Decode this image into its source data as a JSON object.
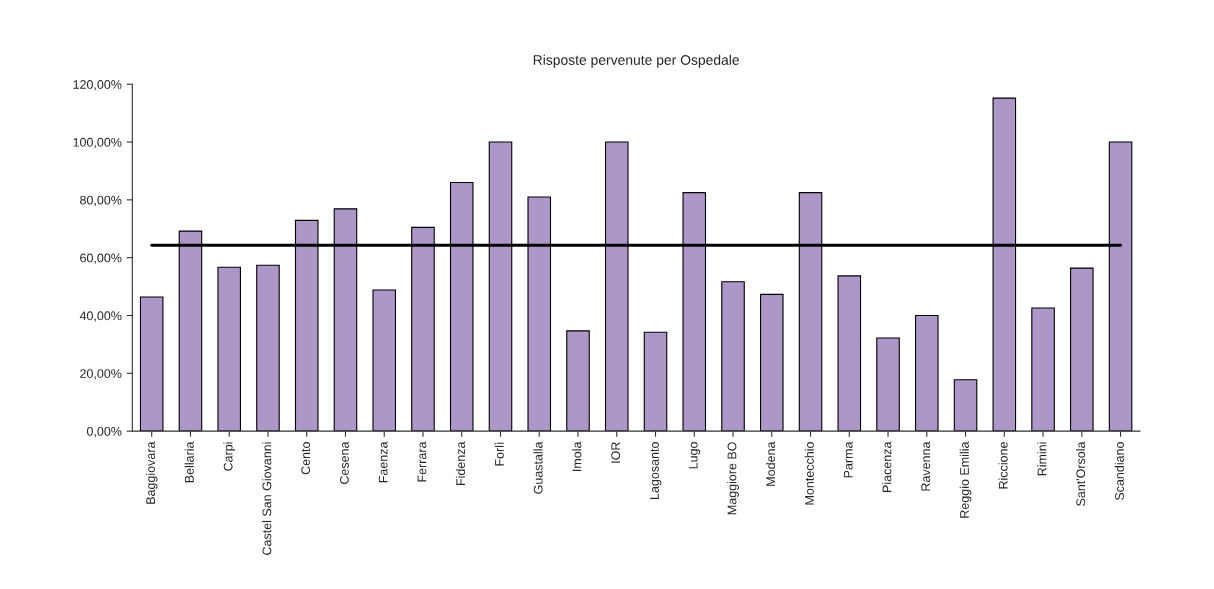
{
  "chart_data": {
    "type": "bar",
    "title": "Risposte pervenute per Ospedale",
    "categories": [
      "Baggiovara",
      "Bellaria",
      "Carpi",
      "Castel San Giovanni",
      "Cento",
      "Cesena",
      "Faenza",
      "Ferrara",
      "Fidenza",
      "Forlì",
      "Guastalla",
      "Imola",
      "IOR",
      "Lagosanto",
      "Lugo",
      "Maggiore BO",
      "Modena",
      "Montecchio",
      "Parma",
      "Piacenza",
      "Ravenna",
      "Reggio Emilia",
      "Riccione",
      "Rimini",
      "Sant'Orsola",
      "Scandiano"
    ],
    "values": [
      46.4,
      69.2,
      56.7,
      57.4,
      72.9,
      76.9,
      48.8,
      70.5,
      86.0,
      100,
      81.0,
      34.7,
      100,
      34.2,
      82.5,
      51.7,
      47.3,
      82.5,
      53.7,
      32.2,
      40.0,
      17.8,
      115.2,
      42.6,
      56.4,
      100
    ],
    "color": "#ad96c8",
    "ylim": [
      0,
      120
    ],
    "yticks": [
      {
        "value": 0,
        "label": "0,00%"
      },
      {
        "value": 20,
        "label": "20,00%"
      },
      {
        "value": 40,
        "label": "40,00%"
      },
      {
        "value": 60,
        "label": "60,00%"
      },
      {
        "value": 80,
        "label": "80,00%"
      },
      {
        "value": 100,
        "label": "100,00%"
      },
      {
        "value": 120,
        "label": "120,00%"
      }
    ],
    "ref_lines": [
      {
        "axis": "y",
        "value": 64.3,
        "color": "#000000"
      }
    ],
    "grid": false,
    "legend": false
  }
}
